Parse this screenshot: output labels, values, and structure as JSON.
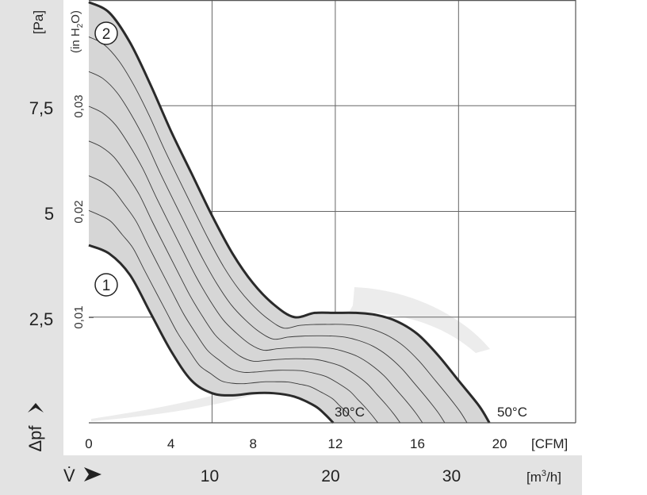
{
  "chart_data": {
    "type": "line",
    "y_pa": {
      "unit_label": "[Pa]",
      "ticks": [
        {
          "value": 2.5,
          "label": "2,5"
        },
        {
          "value": 5,
          "label": "5"
        },
        {
          "value": 7.5,
          "label": "7,5"
        }
      ],
      "range": [
        0,
        10
      ]
    },
    "y_inh2o": {
      "unit_label_parts": [
        "(in H",
        "2",
        "O)"
      ],
      "ticks": [
        {
          "value": 0.01,
          "label": "0,01"
        },
        {
          "value": 0.02,
          "label": "0,02"
        },
        {
          "value": 0.03,
          "label": "0,03"
        }
      ]
    },
    "x_cfm": {
      "unit_label": "[CFM]",
      "ticks": [
        0,
        4,
        8,
        12,
        16,
        20
      ],
      "range": [
        0,
        23.7
      ]
    },
    "x_m3h": {
      "unit_label_parts": [
        "[m",
        "3",
        "/h]"
      ],
      "ticks": [
        10,
        20,
        30
      ]
    },
    "y_axis_symbol": "Δpf",
    "x_axis_symbol": "V̇",
    "curve_markers": [
      "1",
      "2"
    ],
    "temperature_labels": [
      "30°C",
      "50°C"
    ],
    "series": [
      {
        "name": "1",
        "x": [
          0,
          1,
          2,
          3,
          4,
          5,
          6,
          7,
          8,
          9,
          10,
          11,
          11.5,
          11.9
        ],
        "y": [
          4.2,
          4.0,
          3.5,
          2.6,
          1.7,
          1.0,
          0.7,
          0.65,
          0.7,
          0.7,
          0.62,
          0.4,
          0.2,
          0.0
        ]
      },
      {
        "name": "2",
        "x": [
          0,
          1,
          2,
          3,
          4,
          5,
          6,
          7,
          8,
          9,
          10,
          11,
          12,
          13,
          14,
          15,
          16,
          17,
          18,
          19,
          19.5
        ],
        "y": [
          9.95,
          9.7,
          9.0,
          8.0,
          6.9,
          5.9,
          4.9,
          4.0,
          3.3,
          2.8,
          2.5,
          2.6,
          2.6,
          2.6,
          2.55,
          2.4,
          2.1,
          1.6,
          1.0,
          0.4,
          0.0
        ]
      }
    ]
  }
}
